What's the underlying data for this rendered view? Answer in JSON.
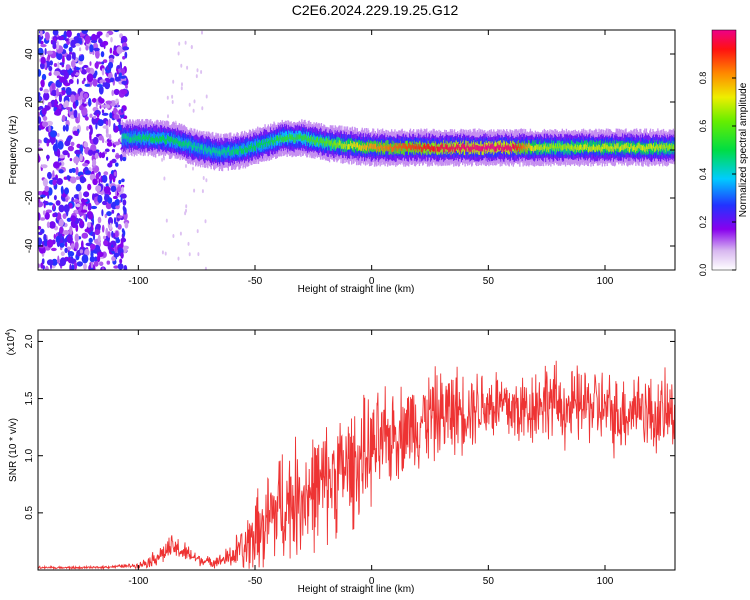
{
  "title": "C2E6.2024.229.19.25.G12",
  "chart_data": [
    {
      "type": "heatmap",
      "xlabel": "Height of straight line (km)",
      "ylabel": "Frequency (Hz)",
      "xlim": [
        -143,
        130
      ],
      "ylim": [
        -50,
        50
      ],
      "x_ticks": [
        "-100",
        "-50",
        "0",
        "50",
        "100"
      ],
      "x_tick_values": [
        -100,
        -50,
        0,
        50,
        100
      ],
      "y_ticks": [
        "-40",
        "-20",
        "0",
        "20",
        "40"
      ],
      "y_tick_values": [
        -40,
        -20,
        0,
        20,
        40
      ],
      "colorbar": {
        "label": "Normalized spectral amplitude",
        "ticks": [
          "0.0",
          "0.2",
          "0.4",
          "0.6",
          "0.8"
        ],
        "tick_values": [
          0.0,
          0.2,
          0.4,
          0.6,
          0.8
        ],
        "range": [
          0,
          1
        ]
      },
      "ridge": {
        "x": [
          -107,
          -95,
          -85,
          -75,
          -65,
          -55,
          -45,
          -38,
          -30,
          -20,
          -10,
          0,
          10,
          20,
          30,
          40,
          50,
          60,
          70,
          80,
          90,
          100,
          110,
          120,
          130
        ],
        "y": [
          5,
          5,
          4,
          1,
          -1,
          0,
          3,
          5,
          5,
          3,
          2,
          1,
          1,
          1,
          1,
          1,
          1,
          1,
          1,
          1,
          1,
          1,
          1,
          1,
          1
        ],
        "amplitude": [
          0.45,
          0.5,
          0.5,
          0.45,
          0.45,
          0.5,
          0.5,
          0.55,
          0.55,
          0.6,
          0.7,
          0.8,
          0.85,
          0.9,
          0.95,
          0.98,
          1.0,
          0.98,
          0.7,
          0.65,
          0.7,
          0.7,
          0.7,
          0.7,
          0.65
        ]
      },
      "noise_region_x": [
        -143,
        -105
      ]
    },
    {
      "type": "line",
      "xlabel": "Height of straight line (km)",
      "ylabel": "SNR (10 * v/v)",
      "y_multiplier": "(x10",
      "y_multiplier_exp": "4",
      "xlim": [
        -143,
        130
      ],
      "ylim": [
        0,
        2.1
      ],
      "x_ticks": [
        "-100",
        "-50",
        "0",
        "50",
        "100"
      ],
      "x_tick_values": [
        -100,
        -50,
        0,
        50,
        100
      ],
      "y_ticks": [
        "0.5",
        "1.0",
        "1.5",
        "2.0"
      ],
      "y_tick_values": [
        0.5,
        1.0,
        1.5,
        2.0
      ],
      "color": "#ee3333",
      "series": [
        {
          "x": [
            -143,
            -130,
            -120,
            -110,
            -100,
            -95,
            -90,
            -85,
            -80,
            -75,
            -70,
            -65,
            -60,
            -55,
            -50,
            -45,
            -40,
            -35,
            -30,
            -25,
            -20,
            -15,
            -10,
            -5,
            0,
            5,
            10,
            15,
            20,
            25,
            30,
            35,
            40,
            45,
            50,
            55,
            60,
            65,
            70,
            75,
            80,
            85,
            90,
            95,
            100,
            105,
            110,
            115,
            120,
            125,
            130
          ],
          "y": [
            0.02,
            0.02,
            0.02,
            0.03,
            0.04,
            0.08,
            0.14,
            0.2,
            0.15,
            0.1,
            0.07,
            0.08,
            0.12,
            0.2,
            0.3,
            0.4,
            0.55,
            0.6,
            0.65,
            0.7,
            0.75,
            0.85,
            0.9,
            0.95,
            1.05,
            1.1,
            1.2,
            1.25,
            1.3,
            1.35,
            1.35,
            1.4,
            1.4,
            1.45,
            1.45,
            1.45,
            1.4,
            1.4,
            1.45,
            1.5,
            1.45,
            1.4,
            1.45,
            1.45,
            1.4,
            1.35,
            1.4,
            1.45,
            1.35,
            1.35,
            1.4
          ],
          "noise": [
            0.01,
            0.01,
            0.01,
            0.01,
            0.02,
            0.05,
            0.08,
            0.1,
            0.08,
            0.05,
            0.04,
            0.05,
            0.1,
            0.2,
            0.3,
            0.4,
            0.45,
            0.45,
            0.45,
            0.45,
            0.45,
            0.45,
            0.45,
            0.45,
            0.4,
            0.4,
            0.35,
            0.35,
            0.35,
            0.35,
            0.35,
            0.35,
            0.3,
            0.3,
            0.3,
            0.3,
            0.3,
            0.3,
            0.3,
            0.3,
            0.3,
            0.3,
            0.3,
            0.3,
            0.3,
            0.3,
            0.3,
            0.3,
            0.3,
            0.3,
            0.3
          ]
        }
      ]
    }
  ]
}
